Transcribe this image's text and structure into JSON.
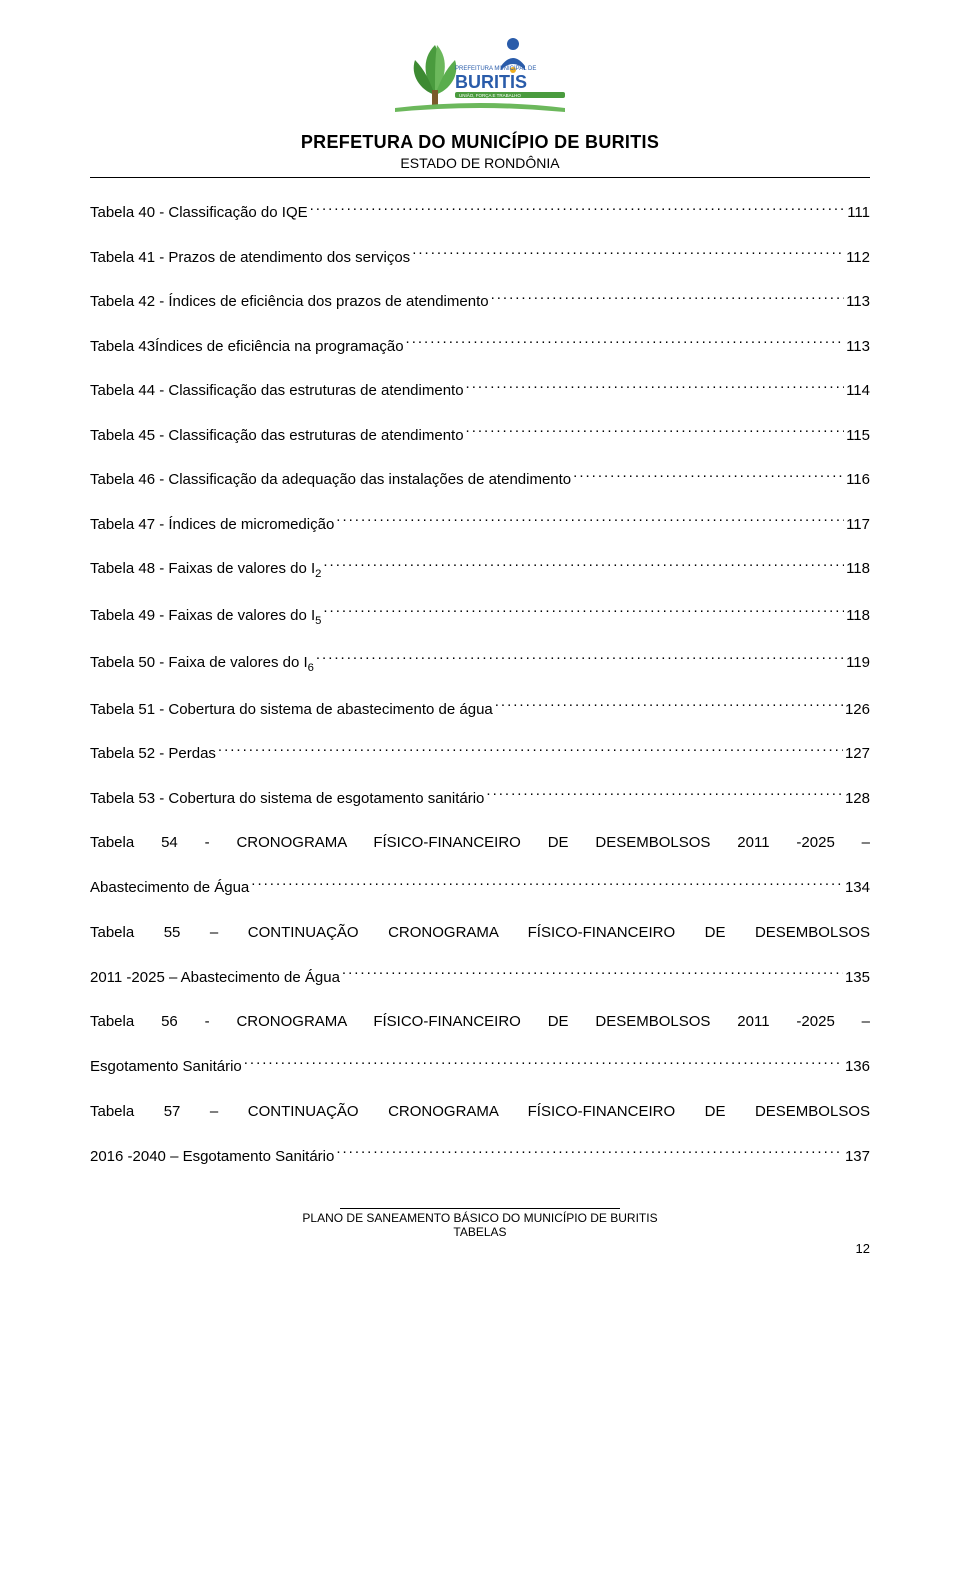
{
  "header": {
    "title": "PREFETURA DO MUNICÍPIO DE BURITIS",
    "subtitle": "ESTADO DE RONDÔNIA"
  },
  "logo": {
    "brand_line1": "PREFEITURA MUNICIPAL DE",
    "brand_line2": "BURITIS",
    "brand_line3": "UNIÃO, FORÇA E TRABALHO"
  },
  "toc": [
    {
      "title": "Tabela 40 - Classificação do IQE",
      "page": "111"
    },
    {
      "title": "Tabela 41 - Prazos de atendimento dos serviços",
      "page": "112"
    },
    {
      "title": "Tabela 42 - Índices de eficiência dos prazos de atendimento",
      "page": "113"
    },
    {
      "title": "Tabela 43Índices de eficiência na programação",
      "page": "113"
    },
    {
      "title": "Tabela 44 - Classificação das estruturas de atendimento",
      "page": "114"
    },
    {
      "title": "Tabela 45 - Classificação das estruturas de atendimento",
      "page": "115"
    },
    {
      "title": "Tabela 46 - Classificação da adequação das instalações de atendimento",
      "page": "116"
    },
    {
      "title": "Tabela 47 - Índices de micromedição",
      "page": "117"
    },
    {
      "title_html": "Tabela 48 - Faixas de valores do I<sub>2</sub>",
      "page": "118"
    },
    {
      "title_html": "Tabela 49 - Faixas de valores do I<sub>5</sub>",
      "page": "118"
    },
    {
      "title_html": "Tabela 50 - Faixa de valores do I<sub>6</sub>",
      "page": "119"
    },
    {
      "title": "Tabela 51 - Cobertura do sistema de abastecimento de água",
      "page": "126"
    },
    {
      "title": "Tabela 52 - Perdas",
      "page": "127"
    },
    {
      "title": "Tabela 53 - Cobertura do sistema de esgotamento sanitário",
      "page": "128"
    },
    {
      "multi": true,
      "line1": "Tabela 54 - CRONOGRAMA FÍSICO-FINANCEIRO DE DESEMBOLSOS 2011 -2025 –",
      "line2": "Abastecimento de Água",
      "page": "134"
    },
    {
      "multi": true,
      "line1": "Tabela 55 – CONTINUAÇÃO CRONOGRAMA FÍSICO-FINANCEIRO DE DESEMBOLSOS",
      "line2": "2011 -2025 – Abastecimento de Água",
      "page": "135"
    },
    {
      "multi": true,
      "line1": "Tabela 56 - CRONOGRAMA FÍSICO-FINANCEIRO DE DESEMBOLSOS 2011 -2025 –",
      "line2": "Esgotamento Sanitário",
      "page": "136"
    },
    {
      "multi": true,
      "line1": "Tabela 57 – CONTINUAÇÃO CRONOGRAMA FÍSICO-FINANCEIRO DE DESEMBOLSOS",
      "line2": "2016 -2040 – Esgotamento Sanitário",
      "page": "137"
    }
  ],
  "footer": {
    "line1": "PLANO DE SANEAMENTO BÁSICO DO MUNICÍPIO DE BURITIS",
    "line2": "TABELAS",
    "page_number": "12"
  },
  "colors": {
    "text": "#000000",
    "background": "#ffffff",
    "logo_green": "#4a9b3e",
    "logo_blue": "#2a5caa",
    "logo_gold": "#f0b020"
  }
}
